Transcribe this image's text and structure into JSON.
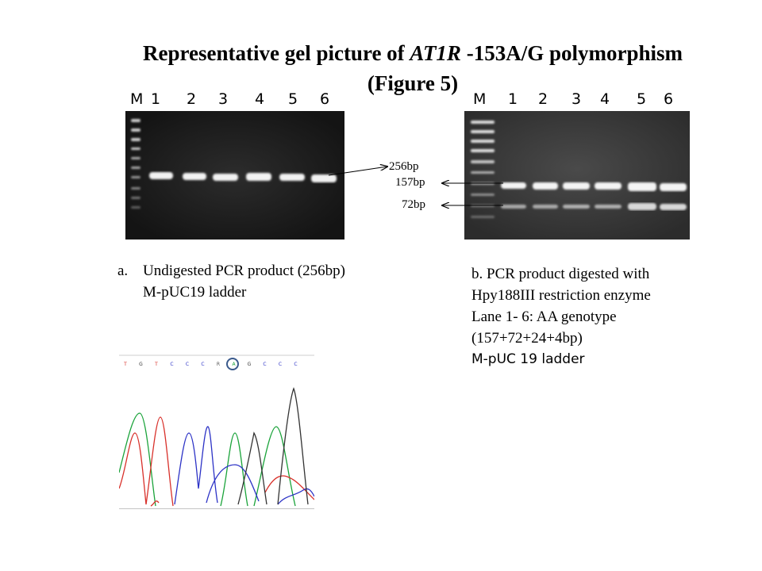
{
  "title": {
    "line1_pre": "Representative gel picture of ",
    "line1_gene": "AT1R",
    "line1_post": " -153A/G polymorphism",
    "line2": "(Figure 5)"
  },
  "gel_a": {
    "lane_labels": [
      "M",
      "1",
      "2",
      "3",
      "4",
      "5",
      "6"
    ],
    "band_label": "256bp",
    "caption_marker": "a.",
    "caption_lines": [
      "Undigested PCR product (256bp)",
      "M-pUC19 ladder"
    ]
  },
  "gel_b": {
    "lane_labels": [
      "M",
      "1",
      "2",
      "3",
      "4",
      "5",
      "6"
    ],
    "band_labels": [
      "157bp",
      "72bp"
    ],
    "caption_lines": [
      "b. PCR product digested with",
      "Hpy188III restriction enzyme",
      "Lane 1- 6: AA genotype",
      "(157+72+24+4bp)"
    ],
    "caption_last": "M-pUC 19 ladder"
  },
  "chromatogram": {
    "bases": [
      "T",
      "G",
      "T",
      "C",
      "C",
      "C",
      "R",
      "A",
      "G",
      "C",
      "C",
      "C"
    ],
    "highlight_index": 7
  }
}
